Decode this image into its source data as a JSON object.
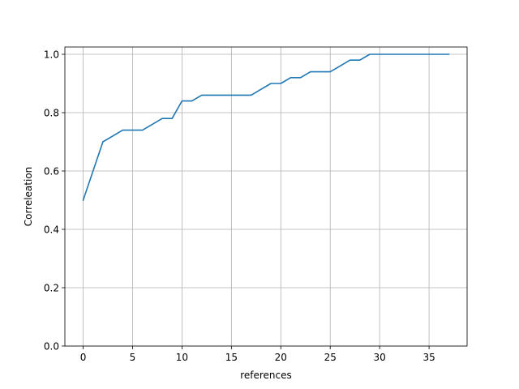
{
  "chart_data": {
    "type": "line",
    "title": "",
    "xlabel": "references",
    "ylabel": "Correleation",
    "xlim": [
      -1.85,
      38.85
    ],
    "ylim": [
      0.0,
      1.025
    ],
    "x_ticks": [
      0,
      5,
      10,
      15,
      20,
      25,
      30,
      35
    ],
    "y_ticks": [
      0.0,
      0.2,
      0.4,
      0.6,
      0.8,
      1.0
    ],
    "x_tick_labels": [
      "0",
      "5",
      "10",
      "15",
      "20",
      "25",
      "30",
      "35"
    ],
    "y_tick_labels": [
      "0.0",
      "0.2",
      "0.4",
      "0.6",
      "0.8",
      "1.0"
    ],
    "grid": true,
    "legend": "none",
    "series": [
      {
        "color": "#1f77b4",
        "x": [
          0,
          1,
          2,
          3,
          4,
          5,
          6,
          7,
          8,
          9,
          10,
          11,
          12,
          13,
          14,
          15,
          16,
          17,
          18,
          19,
          20,
          21,
          22,
          23,
          24,
          25,
          26,
          27,
          28,
          29,
          30,
          31,
          32,
          33,
          34,
          35,
          36,
          37
        ],
        "y": [
          0.5,
          0.6,
          0.7,
          0.72,
          0.74,
          0.74,
          0.74,
          0.76,
          0.78,
          0.78,
          0.84,
          0.84,
          0.86,
          0.86,
          0.86,
          0.86,
          0.86,
          0.86,
          0.88,
          0.9,
          0.9,
          0.92,
          0.92,
          0.94,
          0.94,
          0.94,
          0.96,
          0.98,
          0.98,
          1.0,
          1.0,
          1.0,
          1.0,
          1.0,
          1.0,
          1.0,
          1.0,
          1.0
        ]
      }
    ]
  }
}
